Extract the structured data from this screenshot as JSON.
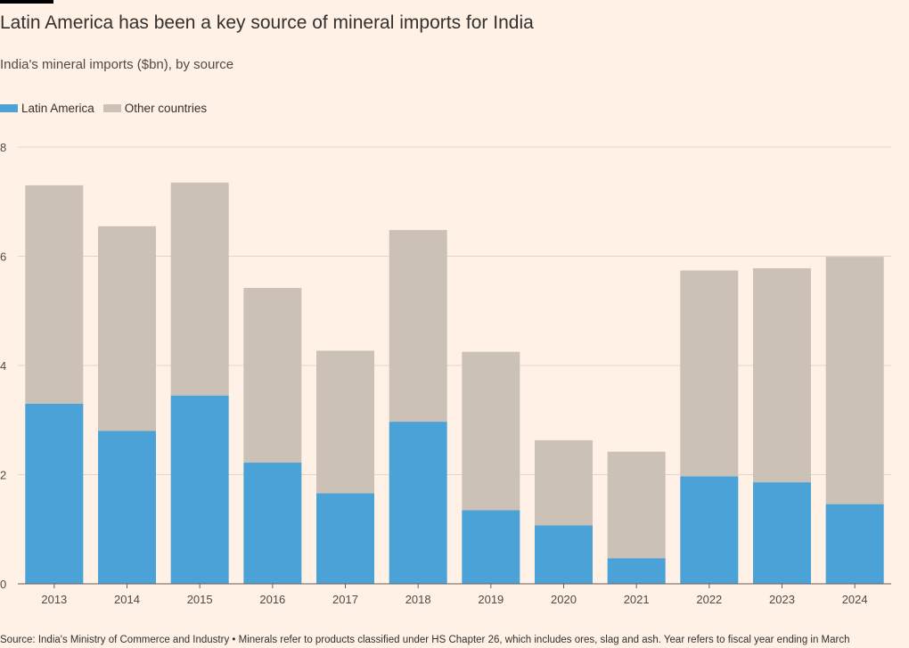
{
  "title": "Latin America has been a key source of mineral imports for India",
  "subtitle": "India's mineral imports ($bn), by source",
  "source": "Source: India's Ministry of Commerce and Industry • Minerals refer to products classified under HS Chapter 26, which includes ores, slag and ash. Year refers to fiscal year ending in March",
  "colors": {
    "background": "#fff1e5",
    "latin_america": "#4aa2d6",
    "other": "#ccc1b7",
    "grid": "#e0d6cc",
    "axis": "#66605c"
  },
  "chart_data": {
    "type": "bar",
    "stacked": true,
    "title": "Latin America has been a key source of mineral imports for India",
    "subtitle": "India's mineral imports ($bn), by source",
    "xlabel": "",
    "ylabel": "",
    "ylim": [
      0,
      8
    ],
    "yticks": [
      "0",
      "2",
      "4",
      "6",
      "8"
    ],
    "grid": true,
    "legend_position": "top-left",
    "categories": [
      "2013",
      "2014",
      "2015",
      "2016",
      "2017",
      "2018",
      "2019",
      "2020",
      "2021",
      "2022",
      "2023",
      "2024"
    ],
    "series": [
      {
        "name": "Latin America",
        "color": "#4aa2d6",
        "values": [
          3.3,
          2.8,
          3.45,
          2.22,
          1.66,
          2.97,
          1.35,
          1.07,
          0.47,
          1.97,
          1.86,
          1.46
        ]
      },
      {
        "name": "Other countries",
        "color": "#ccc1b7",
        "values": [
          4.0,
          3.75,
          3.9,
          3.2,
          2.61,
          3.51,
          2.9,
          1.56,
          1.95,
          3.77,
          3.92,
          4.53
        ]
      }
    ]
  }
}
